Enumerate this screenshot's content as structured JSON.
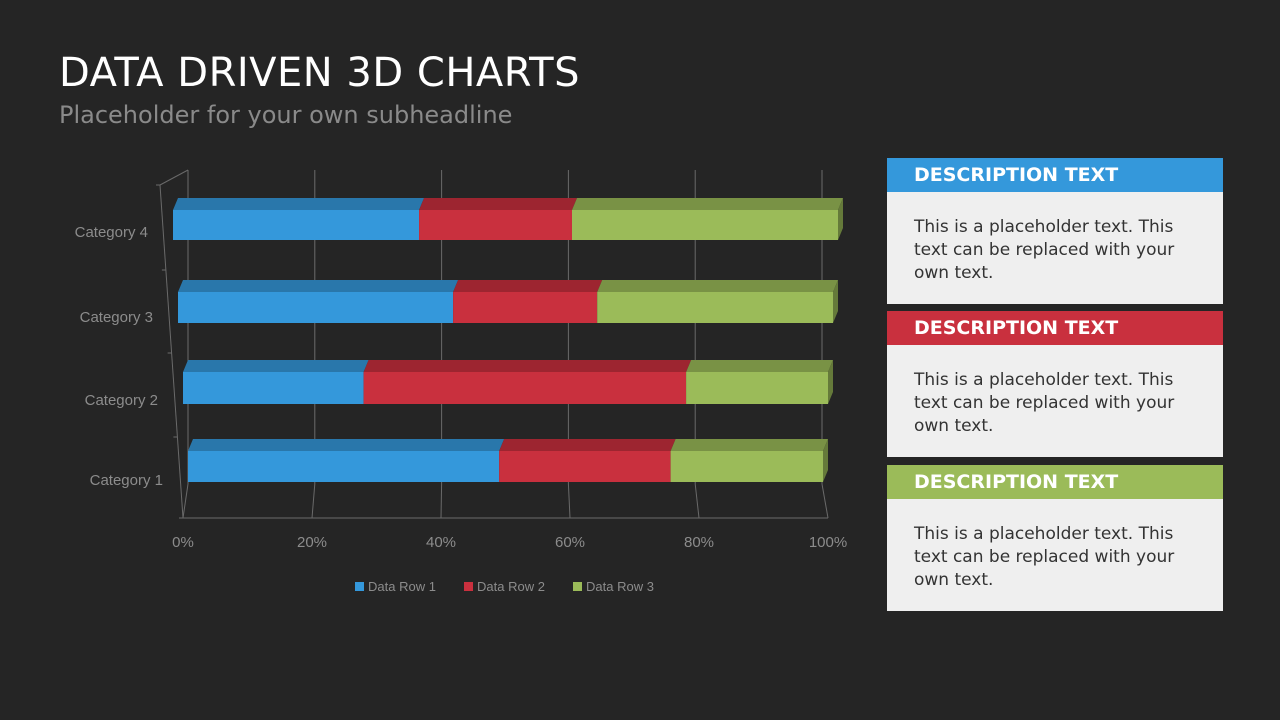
{
  "header": {
    "title": "DATA DRIVEN 3D CHARTS",
    "subtitle": "Placeholder  for your own subheadline"
  },
  "colors": {
    "background": "#252525",
    "series_1": "#3498db",
    "series_2": "#c9303e",
    "series_3": "#9bbb59",
    "axis_text": "#8c8c8c"
  },
  "chart_data": {
    "type": "bar",
    "orientation": "horizontal",
    "stacked": "percent",
    "three_d": true,
    "categories": [
      "Category 1",
      "Category 2",
      "Category 3",
      "Category 4"
    ],
    "series": [
      {
        "name": "Data Row 1",
        "values": [
          49,
          28,
          42,
          37
        ]
      },
      {
        "name": "Data Row 2",
        "values": [
          27,
          50,
          22,
          23
        ]
      },
      {
        "name": "Data Row 3",
        "values": [
          24,
          22,
          36,
          40
        ]
      }
    ],
    "x_ticks": [
      "0%",
      "20%",
      "40%",
      "60%",
      "80%",
      "100%"
    ],
    "xlim": [
      0,
      100
    ],
    "grid": true,
    "legend_position": "bottom"
  },
  "descriptions": [
    {
      "title": "DESCRIPTION TEXT",
      "body": "This is a placeholder text. This text can be replaced with your own text.",
      "color": "#3498db"
    },
    {
      "title": "DESCRIPTION TEXT",
      "body": "This is a placeholder text. This text can be replaced with your own text.",
      "color": "#c9303e"
    },
    {
      "title": "DESCRIPTION TEXT",
      "body": "This is a placeholder text. This text can be replaced with your own text.",
      "color": "#9bbb59"
    }
  ]
}
